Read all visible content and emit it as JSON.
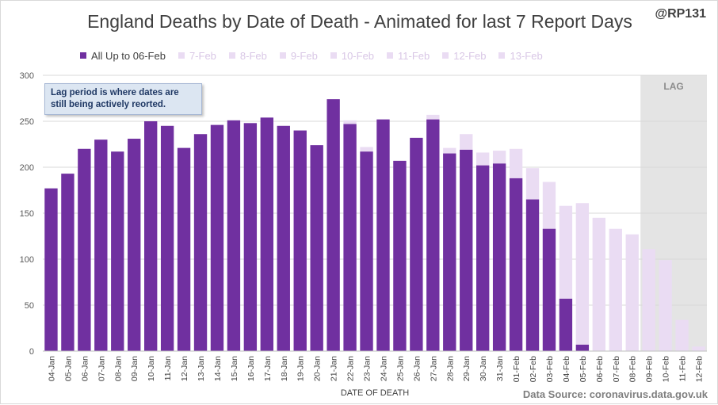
{
  "header": {
    "title": "England Deaths by Date of Death - Animated for last 7 Report Days",
    "handle": "@RP131"
  },
  "note": "Lag period is where dates are still being actively reorted.",
  "source": "Data Source: coronavirus.data.gov.uk",
  "colors": {
    "primary": "#7030a0",
    "ghost": "#eadcf3",
    "lag_shade": "#e4e4e4",
    "grid": "#d9d9d9"
  },
  "chart_data": {
    "type": "bar",
    "xlabel": "DATE OF DEATH",
    "ylabel": "",
    "ylim": [
      0,
      300
    ],
    "yticks": [
      0,
      50,
      100,
      150,
      200,
      250,
      300
    ],
    "grid": true,
    "legend_position": "top",
    "legend": [
      "All Up to 06-Feb",
      "7-Feb",
      "8-Feb",
      "9-Feb",
      "10-Feb",
      "11-Feb",
      "12-Feb",
      "13-Feb"
    ],
    "lag_label": "LAG",
    "lag_start": "09-Feb",
    "categories": [
      "04-Jan",
      "05-Jan",
      "06-Jan",
      "07-Jan",
      "08-Jan",
      "09-Jan",
      "10-Jan",
      "11-Jan",
      "12-Jan",
      "13-Jan",
      "14-Jan",
      "15-Jan",
      "16-Jan",
      "17-Jan",
      "18-Jan",
      "19-Jan",
      "20-Jan",
      "21-Jan",
      "22-Jan",
      "23-Jan",
      "24-Jan",
      "25-Jan",
      "26-Jan",
      "27-Jan",
      "28-Jan",
      "29-Jan",
      "30-Jan",
      "31-Jan",
      "01-Feb",
      "02-Feb",
      "03-Feb",
      "04-Feb",
      "05-Feb",
      "06-Feb",
      "07-Feb",
      "08-Feb",
      "09-Feb",
      "10-Feb",
      "11-Feb",
      "12-Feb"
    ],
    "series": [
      {
        "name": "All Up to 06-Feb",
        "values": [
          177,
          193,
          220,
          230,
          217,
          231,
          250,
          245,
          221,
          236,
          246,
          251,
          248,
          254,
          245,
          240,
          224,
          274,
          247,
          217,
          252,
          207,
          232,
          252,
          215,
          219,
          202,
          204,
          188,
          165,
          133,
          57,
          7,
          0,
          0,
          0,
          0,
          0,
          0,
          0
        ]
      },
      {
        "name": "13-Feb",
        "values": [
          177,
          193,
          220,
          230,
          217,
          231,
          250,
          245,
          221,
          236,
          246,
          251,
          248,
          254,
          245,
          240,
          224,
          274,
          251,
          222,
          252,
          207,
          232,
          257,
          221,
          236,
          216,
          218,
          220,
          199,
          184,
          158,
          161,
          145,
          133,
          127,
          111,
          99,
          34,
          5
        ]
      }
    ]
  }
}
